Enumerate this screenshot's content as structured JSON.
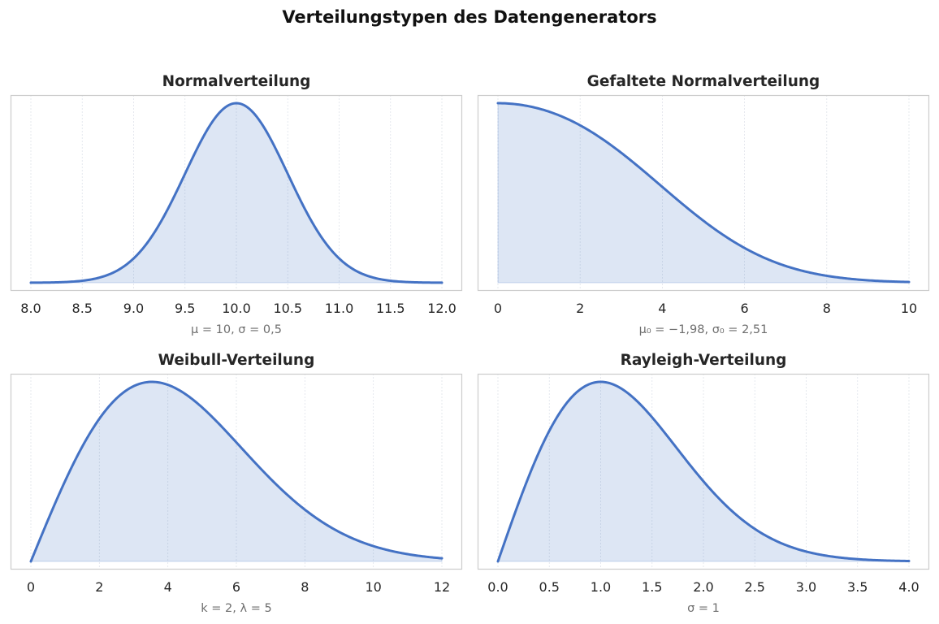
{
  "figure": {
    "title": "Verteilungstypen des Datengenerators"
  },
  "colors": {
    "line": "#4472c4",
    "fill": "#4472c4",
    "frame": "#cccccc",
    "grid": "#dfe3ea"
  },
  "chart_data": [
    {
      "type": "area",
      "title": "Normalverteilung",
      "xlabel": "μ = 10, σ = 0,5",
      "distribution": "normal",
      "params": {
        "mu": 10,
        "sigma": 0.5
      },
      "xlim": [
        8.0,
        12.0
      ],
      "xticks": [
        8.0,
        8.5,
        9.0,
        9.5,
        10.0,
        10.5,
        11.0,
        11.5,
        12.0
      ],
      "xtick_labels": [
        "8.0",
        "8.5",
        "9.0",
        "9.5",
        "10.0",
        "10.5",
        "11.0",
        "11.5",
        "12.0"
      ],
      "y_ticks_visible": false,
      "grid": "vertical"
    },
    {
      "type": "area",
      "title": "Gefaltete Normalverteilung",
      "xlabel": "μ₀ = −1,98, σ₀ = 2,51",
      "distribution": "folded_normal",
      "params": {
        "mu": -1.98,
        "sigma": 2.51
      },
      "xlim": [
        0,
        10
      ],
      "xticks": [
        0,
        2,
        4,
        6,
        8,
        10
      ],
      "xtick_labels": [
        "0",
        "2",
        "4",
        "6",
        "8",
        "10"
      ],
      "y_ticks_visible": false,
      "grid": "vertical"
    },
    {
      "type": "area",
      "title": "Weibull-Verteilung",
      "xlabel": "k = 2, λ = 5",
      "distribution": "weibull",
      "params": {
        "k": 2,
        "lambda": 5
      },
      "xlim": [
        0,
        12
      ],
      "xticks": [
        0,
        2,
        4,
        6,
        8,
        10,
        12
      ],
      "xtick_labels": [
        "0",
        "2",
        "4",
        "6",
        "8",
        "10",
        "12"
      ],
      "y_ticks_visible": false,
      "grid": "vertical"
    },
    {
      "type": "area",
      "title": "Rayleigh-Verteilung",
      "xlabel": "σ = 1",
      "distribution": "rayleigh",
      "params": {
        "sigma": 1
      },
      "xlim": [
        0.0,
        4.0
      ],
      "xticks": [
        0.0,
        0.5,
        1.0,
        1.5,
        2.0,
        2.5,
        3.0,
        3.5,
        4.0
      ],
      "xtick_labels": [
        "0.0",
        "0.5",
        "1.0",
        "1.5",
        "2.0",
        "2.5",
        "3.0",
        "3.5",
        "4.0"
      ],
      "y_ticks_visible": false,
      "grid": "vertical"
    }
  ]
}
